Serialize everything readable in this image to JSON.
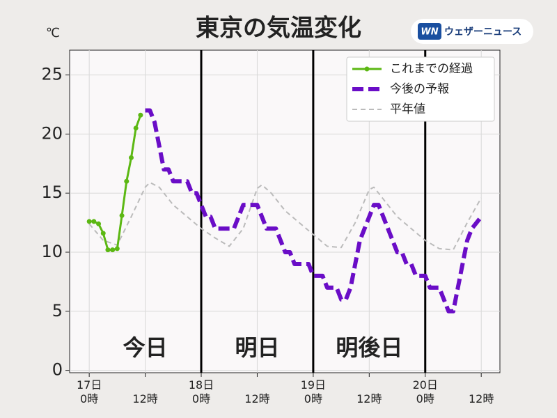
{
  "chart_data": {
    "type": "line",
    "title": "東京の気温変化",
    "y_unit": "℃",
    "brand": {
      "badge": "WN",
      "name": "ウェザーニュース"
    },
    "xlim": [
      -4.2,
      88
    ],
    "ylim": [
      -0.2,
      27.1
    ],
    "xticks": [
      {
        "value": 0,
        "label": "17日\n0時"
      },
      {
        "value": 12,
        "label": "12時"
      },
      {
        "value": 24,
        "label": "18日\n0時"
      },
      {
        "value": 36,
        "label": "12時"
      },
      {
        "value": 48,
        "label": "19日\n0時"
      },
      {
        "value": 60,
        "label": "12時"
      },
      {
        "value": 72,
        "label": "20日\n0時"
      },
      {
        "value": 84,
        "label": "12時"
      }
    ],
    "yticks": [
      0,
      5,
      10,
      15,
      20,
      25
    ],
    "grid": true,
    "legend": "upper right",
    "day_lines": [
      24,
      48,
      72
    ],
    "day_labels": [
      "今日",
      "明日",
      "明後日"
    ],
    "series": [
      {
        "name": "これまでの経過",
        "color": "#5cb813",
        "style": "solid-marker",
        "x": [
          0,
          1,
          2,
          3,
          4,
          5,
          6,
          7,
          8,
          9,
          10,
          11
        ],
        "values": [
          12.6,
          12.6,
          12.4,
          11.6,
          10.2,
          10.2,
          10.3,
          13.1,
          16.0,
          18.0,
          20.5,
          21.6
        ]
      },
      {
        "name": "今後の予報",
        "color": "#6a0dc7",
        "style": "dash-thick",
        "x": [
          12,
          13,
          14,
          15,
          16,
          17,
          18,
          19,
          20,
          21,
          22,
          23,
          24,
          25,
          26,
          27,
          28,
          29,
          30,
          31,
          32,
          33,
          34,
          35,
          36,
          37,
          38,
          39,
          40,
          41,
          42,
          43,
          44,
          45,
          46,
          47,
          48,
          49,
          50,
          51,
          52,
          53,
          54,
          55,
          56,
          57,
          58,
          59,
          60,
          61,
          62,
          63,
          64,
          65,
          66,
          67,
          68,
          69,
          70,
          71,
          72,
          73,
          74,
          75,
          76,
          77,
          78,
          79,
          80,
          81,
          82,
          83,
          84
        ],
        "values": [
          22,
          22,
          21,
          19,
          17,
          17,
          16,
          16,
          16,
          16,
          15,
          15,
          14,
          13,
          13,
          12,
          12,
          12,
          12,
          12,
          13,
          14,
          14,
          14,
          14,
          13,
          12,
          12,
          12,
          11,
          10,
          10,
          9,
          9,
          9,
          9,
          8,
          8,
          8,
          7,
          7,
          7,
          6,
          6,
          7,
          9,
          11,
          12,
          13,
          14,
          14,
          13,
          12,
          11,
          10,
          10,
          9,
          9,
          8,
          8,
          8,
          7,
          7,
          7,
          6,
          5,
          5,
          7,
          9,
          11,
          12,
          12.5,
          13
        ]
      },
      {
        "name": "平年値",
        "color": "#bbbbbb",
        "style": "dash-thin",
        "x": [
          0,
          3,
          6,
          9,
          12,
          13,
          15,
          18,
          21,
          24,
          27,
          30,
          33,
          36,
          37,
          39,
          42,
          45,
          48,
          51,
          54,
          57,
          60,
          61,
          63,
          66,
          69,
          72,
          75,
          78,
          81,
          84
        ],
        "values": [
          12.4,
          11,
          10.6,
          13,
          15.5,
          15.9,
          15.5,
          14,
          13,
          12,
          11.2,
          10.5,
          12,
          15.4,
          15.7,
          15,
          13.5,
          12.5,
          11.5,
          10.5,
          10.4,
          12.5,
          15.3,
          15.5,
          14.5,
          13,
          12,
          11,
          10.3,
          10.2,
          12.5,
          14.6
        ]
      }
    ]
  }
}
